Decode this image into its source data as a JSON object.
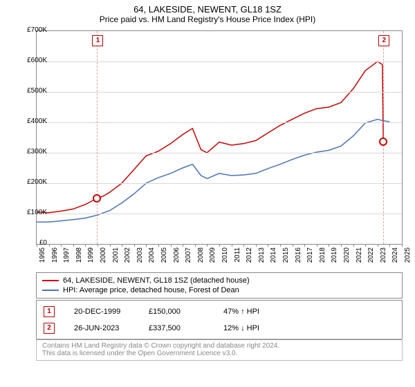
{
  "title": "64, LAKESIDE, NEWENT, GL18 1SZ",
  "subtitle": "Price paid vs. HM Land Registry's House Price Index (HPI)",
  "chart": {
    "type": "line",
    "background_color": "#ffffff",
    "grid_color": "#d8d8d8",
    "border_color": "#888888",
    "x_domain": [
      1995,
      2025
    ],
    "y_domain": [
      0,
      700000
    ],
    "y_ticks": [
      0,
      100000,
      200000,
      300000,
      400000,
      500000,
      600000,
      700000
    ],
    "y_tick_labels": [
      "£0",
      "£100K",
      "£200K",
      "£300K",
      "£400K",
      "£500K",
      "£600K",
      "£700K"
    ],
    "x_ticks": [
      1995,
      1996,
      1997,
      1998,
      1999,
      2000,
      2001,
      2002,
      2003,
      2004,
      2005,
      2006,
      2007,
      2008,
      2009,
      2010,
      2011,
      2012,
      2013,
      2014,
      2015,
      2016,
      2017,
      2018,
      2019,
      2020,
      2021,
      2022,
      2023,
      2024,
      2025
    ],
    "series": [
      {
        "name": "64, LAKESIDE, NEWENT, GL18 1SZ (detached house)",
        "color": "#cc0000",
        "line_width": 1.5,
        "data": [
          [
            1995,
            105000
          ],
          [
            1996,
            103000
          ],
          [
            1997,
            108000
          ],
          [
            1998,
            115000
          ],
          [
            1999,
            130000
          ],
          [
            1999.97,
            150000
          ],
          [
            2000.5,
            158000
          ],
          [
            2001,
            170000
          ],
          [
            2002,
            200000
          ],
          [
            2003,
            245000
          ],
          [
            2004,
            290000
          ],
          [
            2005,
            305000
          ],
          [
            2006,
            330000
          ],
          [
            2007,
            360000
          ],
          [
            2007.8,
            380000
          ],
          [
            2008.5,
            310000
          ],
          [
            2009,
            300000
          ],
          [
            2010,
            335000
          ],
          [
            2011,
            325000
          ],
          [
            2012,
            330000
          ],
          [
            2013,
            340000
          ],
          [
            2014,
            365000
          ],
          [
            2015,
            390000
          ],
          [
            2016,
            410000
          ],
          [
            2017,
            430000
          ],
          [
            2018,
            445000
          ],
          [
            2019,
            450000
          ],
          [
            2020,
            465000
          ],
          [
            2021,
            510000
          ],
          [
            2022,
            570000
          ],
          [
            2023,
            600000
          ],
          [
            2023.4,
            590000
          ],
          [
            2023.48,
            337500
          ]
        ]
      },
      {
        "name": "HPI: Average price, detached house, Forest of Dean",
        "color": "#4a72b8",
        "line_width": 1.5,
        "data": [
          [
            1995,
            72000
          ],
          [
            1996,
            72000
          ],
          [
            1997,
            76000
          ],
          [
            1998,
            80000
          ],
          [
            1999,
            85000
          ],
          [
            2000,
            95000
          ],
          [
            2001,
            110000
          ],
          [
            2002,
            135000
          ],
          [
            2003,
            165000
          ],
          [
            2004,
            200000
          ],
          [
            2005,
            218000
          ],
          [
            2006,
            232000
          ],
          [
            2007,
            250000
          ],
          [
            2007.8,
            262000
          ],
          [
            2008.5,
            225000
          ],
          [
            2009,
            215000
          ],
          [
            2010,
            232000
          ],
          [
            2011,
            225000
          ],
          [
            2012,
            227000
          ],
          [
            2013,
            232000
          ],
          [
            2014,
            248000
          ],
          [
            2015,
            262000
          ],
          [
            2016,
            278000
          ],
          [
            2017,
            292000
          ],
          [
            2018,
            302000
          ],
          [
            2019,
            308000
          ],
          [
            2020,
            322000
          ],
          [
            2021,
            355000
          ],
          [
            2022,
            398000
          ],
          [
            2023,
            410000
          ],
          [
            2023.5,
            405000
          ],
          [
            2024,
            402000
          ]
        ]
      }
    ],
    "markers": [
      {
        "label": "1",
        "x": 1999.97,
        "y": 150000,
        "color": "#cc0000"
      },
      {
        "label": "2",
        "x": 2023.48,
        "y": 337500,
        "color": "#cc0000"
      }
    ],
    "marker_lines": [
      {
        "x": 1999.97,
        "color": "#c44"
      },
      {
        "x": 2023.48,
        "color": "#c44"
      }
    ]
  },
  "legend": {
    "items": [
      {
        "color": "#cc0000",
        "label": "64, LAKESIDE, NEWENT, GL18 1SZ (detached house)"
      },
      {
        "color": "#4a72b8",
        "label": "HPI: Average price, detached house, Forest of Dean"
      }
    ]
  },
  "events": [
    {
      "num": "1",
      "date": "20-DEC-1999",
      "price": "£150,000",
      "delta": "47% ↑ HPI"
    },
    {
      "num": "2",
      "date": "26-JUN-2023",
      "price": "£337,500",
      "delta": "12% ↓ HPI"
    }
  ],
  "footer_line1": "Contains HM Land Registry data © Crown copyright and database right 2024.",
  "footer_line2": "This data is licensed under the Open Government Licence v3.0."
}
